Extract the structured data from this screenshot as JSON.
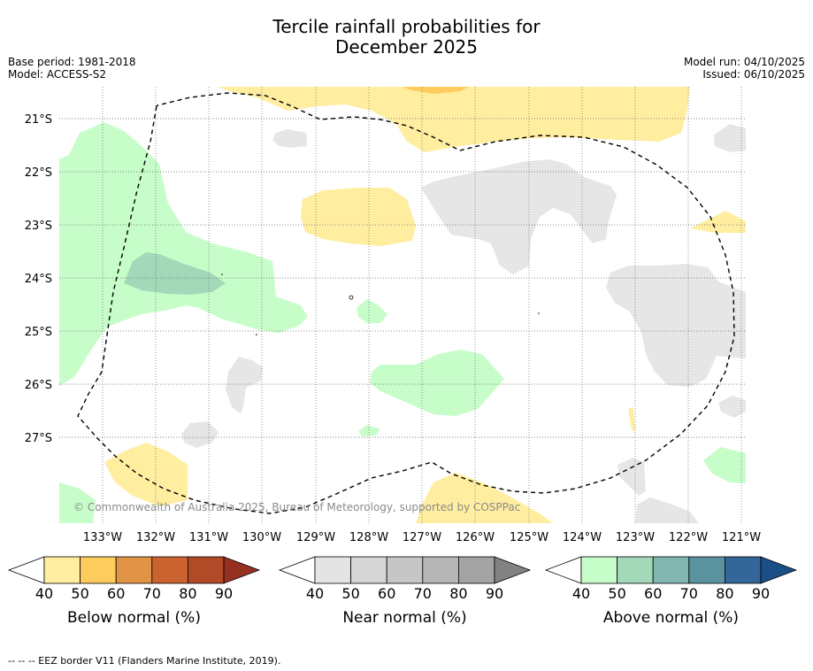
{
  "title_line1": "Tercile rainfall probabilities for",
  "title_line2": "December 2025",
  "base_period": "Base period: 1981-2018",
  "model": "Model: ACCESS-S2",
  "model_run": "Model run: 04/10/2025",
  "issued": "Issued: 06/10/2025",
  "map": {
    "lat_labels": [
      "21°S",
      "22°S",
      "23°S",
      "24°S",
      "25°S",
      "26°S",
      "27°S"
    ],
    "lon_labels": [
      "133°W",
      "132°W",
      "131°W",
      "130°W",
      "129°W",
      "128°W",
      "127°W",
      "126°W",
      "125°W",
      "124°W",
      "123°W",
      "122°W",
      "121°W"
    ],
    "copyright": "© Commonwealth of Australia 2025, Bureau of Meteorology, supported by COSPPac"
  },
  "legends": [
    {
      "title": "Below normal (%)",
      "ticks": [
        "40",
        "50",
        "60",
        "70",
        "80",
        "90"
      ],
      "colors": [
        "#ffeda0",
        "#fecc5c",
        "#e19445",
        "#cb6331",
        "#b04a27",
        "#963020"
      ]
    },
    {
      "title": "Near normal (%)",
      "ticks": [
        "40",
        "50",
        "60",
        "70",
        "80",
        "90"
      ],
      "colors": [
        "#e4e4e4",
        "#d6d6d6",
        "#c6c6c6",
        "#b6b6b6",
        "#a3a3a3",
        "#828282"
      ]
    },
    {
      "title": "Above normal (%)",
      "ticks": [
        "40",
        "50",
        "60",
        "70",
        "80",
        "90"
      ],
      "colors": [
        "#c7fdc9",
        "#a3d9b8",
        "#82b6b1",
        "#5a929f",
        "#336699",
        "#1a4e86"
      ]
    }
  ],
  "footnote": "--  --  -- EEZ border V11 (Flanders Marine Institute, 2019).",
  "colors": {
    "below_40": "#ffeda0",
    "below_50": "#fecc5c",
    "near_40": "#e6e6e6",
    "above_40": "#c7fdc9",
    "above_50": "#a3d9b8"
  }
}
